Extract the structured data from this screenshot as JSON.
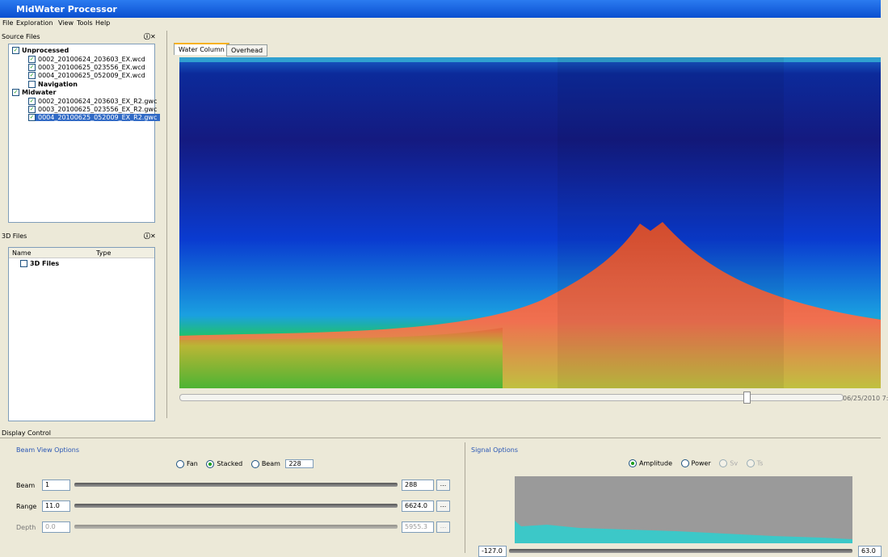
{
  "window": {
    "title": "MidWater Processor"
  },
  "menu": [
    "File",
    "Exploration",
    "View",
    "Tools",
    "Help"
  ],
  "source_files": {
    "title": "Source Files",
    "groups": [
      {
        "label": "Unprocessed",
        "files": [
          "0002_20100624_203603_EX.wcd",
          "0003_20100625_023556_EX.wcd",
          "0004_20100625_052009_EX.wcd"
        ]
      },
      {
        "label": "Navigation"
      },
      {
        "label": "Midwater",
        "files": [
          "0002_20100624_203603_EX_R2.gwc",
          "0003_20100625_023556_EX_R2.gwc",
          "0004_20100625_052009_EX_R2.gwc"
        ]
      }
    ]
  },
  "files_3d": {
    "title": "3D Files",
    "columns": [
      "Name",
      "Type"
    ],
    "items": [
      "3D Files"
    ]
  },
  "tabs": [
    "Water Column",
    "Overhead"
  ],
  "timeline": {
    "label": "06/25/2010 7:"
  },
  "display_control": {
    "title": "Display Control",
    "beam_view": {
      "title": "Beam View Options",
      "modes": [
        "Fan",
        "Stacked",
        "Beam"
      ],
      "beam_spin": "228",
      "rows": [
        {
          "label": "Beam",
          "min": "1",
          "max": "288"
        },
        {
          "label": "Range",
          "min": "11.0",
          "max": "6624.0"
        },
        {
          "label": "Depth",
          "min": "0.0",
          "max": "5955.3"
        }
      ]
    },
    "signal": {
      "title": "Signal Options",
      "modes": [
        "Amplitude",
        "Power",
        "Sv",
        "Ts"
      ],
      "min": "-127.0",
      "max": "63.0"
    }
  }
}
